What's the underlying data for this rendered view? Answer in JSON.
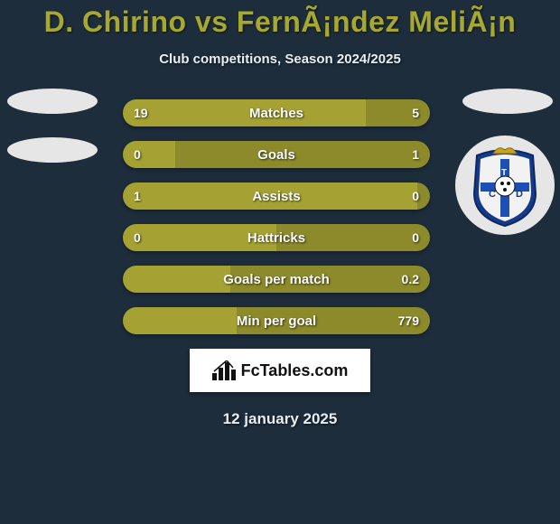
{
  "background_color": "#1d2d3b",
  "title": {
    "text": "D. Chirino vs FernÃ¡ndez MeliÃ¡n",
    "color": "#a7a82f",
    "fontsize": 32,
    "fontweight": 900
  },
  "subtitle": {
    "text": "Club competitions, Season 2024/2025",
    "color": "#e9eef3",
    "fontsize": 15
  },
  "stat_rows": [
    {
      "label": "Matches",
      "left_val": "19",
      "right_val": "5",
      "left_pct": 79,
      "right_pct": 21
    },
    {
      "label": "Goals",
      "left_val": "0",
      "right_val": "1",
      "left_pct": 17,
      "right_pct": 83
    },
    {
      "label": "Assists",
      "left_val": "1",
      "right_val": "0",
      "left_pct": 96,
      "right_pct": 4
    },
    {
      "label": "Hattricks",
      "left_val": "0",
      "right_val": "0",
      "left_pct": 50,
      "right_pct": 50
    },
    {
      "label": "Goals per match",
      "left_val": "",
      "right_val": "0.2",
      "left_pct": 35,
      "right_pct": 65
    },
    {
      "label": "Min per goal",
      "left_val": "",
      "right_val": "779",
      "left_pct": 37,
      "right_pct": 63
    }
  ],
  "bar_colors": {
    "left": "#a5a233",
    "right": "#8c8a2a",
    "left_soft": "#8f8d35",
    "right_soft": "#6e6c22"
  },
  "brand": {
    "text": "FcTables.com",
    "bg": "#ffffff",
    "text_color": "#111111"
  },
  "date": {
    "text": "12 january 2025",
    "color": "#e7edf3"
  },
  "badge": {
    "name": "club-crest",
    "outer": "#153a89",
    "inner_white": "#f2f2f2",
    "cross": "#1e4fb5",
    "ball": "#ffffff",
    "crown": "#c9a31a"
  },
  "decor": {
    "dot_bg": "#e6e6e6"
  }
}
